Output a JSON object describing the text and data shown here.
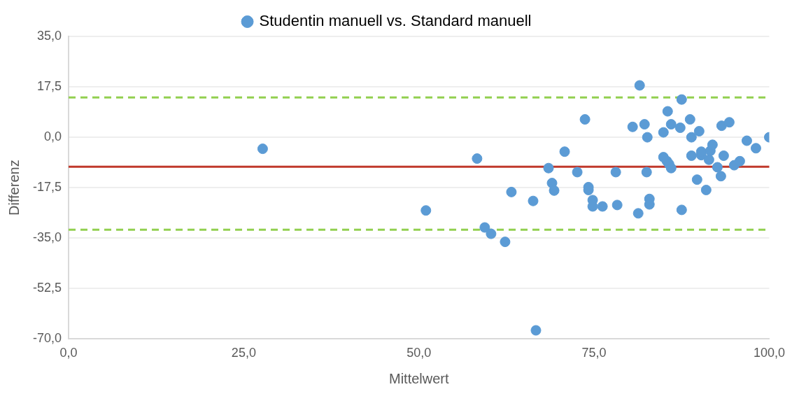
{
  "chart_data": {
    "type": "scatter",
    "xlabel": "Mittelwert",
    "ylabel": "Differenz",
    "legend": "top",
    "grid": "y",
    "marker": "circle",
    "xlim": [
      0,
      100
    ],
    "xticks": [
      {
        "value": 0,
        "label": "0,0"
      },
      {
        "value": 25,
        "label": "25,0"
      },
      {
        "value": 50,
        "label": "50,0"
      },
      {
        "value": 75,
        "label": "75,0"
      },
      {
        "value": 100,
        "label": "100,0"
      }
    ],
    "ylim": [
      -70,
      35
    ],
    "yticks": [
      {
        "value": -70,
        "label": "-70,0"
      },
      {
        "value": -52.5,
        "label": "-52,5"
      },
      {
        "value": -35,
        "label": "-35,0"
      },
      {
        "value": -17.5,
        "label": "-17,5"
      },
      {
        "value": 0,
        "label": "0,0"
      },
      {
        "value": 17.5,
        "label": "17,5"
      },
      {
        "value": 35,
        "label": "35,0"
      }
    ],
    "ref_lines": [
      {
        "axis": "y",
        "value": -10.2,
        "color": "#c0392b",
        "line_style": "solid"
      },
      {
        "axis": "y",
        "value": 13.8,
        "color": "#92d050",
        "line_style": "dashed"
      },
      {
        "axis": "y",
        "value": -32.1,
        "color": "#92d050",
        "line_style": "dashed"
      }
    ],
    "series": [
      {
        "name": "Studentin manuell vs. Standard manuell",
        "color": "#5b9bd5",
        "x": [
          27.7,
          51.0,
          58.3,
          59.4,
          60.3,
          62.3,
          63.2,
          66.3,
          66.7,
          68.5,
          69.0,
          69.3,
          70.8,
          72.6,
          73.7,
          74.2,
          74.2,
          74.8,
          74.8,
          76.2,
          78.1,
          78.3,
          80.5,
          81.3,
          81.5,
          82.2,
          82.5,
          82.6,
          82.9,
          82.9,
          84.9,
          84.9,
          85.4,
          85.5,
          85.7,
          86.0,
          86.0,
          87.3,
          87.5,
          87.5,
          88.7,
          88.9,
          88.9,
          89.7,
          90.0,
          90.3,
          90.3,
          91.0,
          91.4,
          91.6,
          91.9,
          92.6,
          93.1,
          93.2,
          93.5,
          94.3,
          95.0,
          95.8,
          96.8,
          98.1,
          100.0
        ],
        "values": [
          -4.0,
          -25.4,
          -7.4,
          -31.3,
          -33.5,
          -36.3,
          -19.0,
          -22.1,
          -67.0,
          -10.7,
          -15.9,
          -18.5,
          -5.0,
          -12.1,
          6.2,
          -17.3,
          -18.3,
          -21.8,
          -24.0,
          -24.0,
          -12.1,
          -23.5,
          3.6,
          -26.4,
          18.0,
          4.5,
          -12.1,
          0.0,
          -21.4,
          -23.3,
          1.7,
          -6.9,
          -8.3,
          9.0,
          -9.3,
          4.5,
          -10.7,
          3.3,
          13.1,
          -25.2,
          6.2,
          0.0,
          -6.4,
          -14.7,
          2.1,
          -6.2,
          -5.0,
          -18.3,
          -7.8,
          -4.7,
          -2.6,
          -10.4,
          -13.5,
          4.0,
          -6.4,
          5.2,
          -9.7,
          -8.3,
          -1.2,
          -3.8,
          0.0
        ]
      }
    ]
  }
}
